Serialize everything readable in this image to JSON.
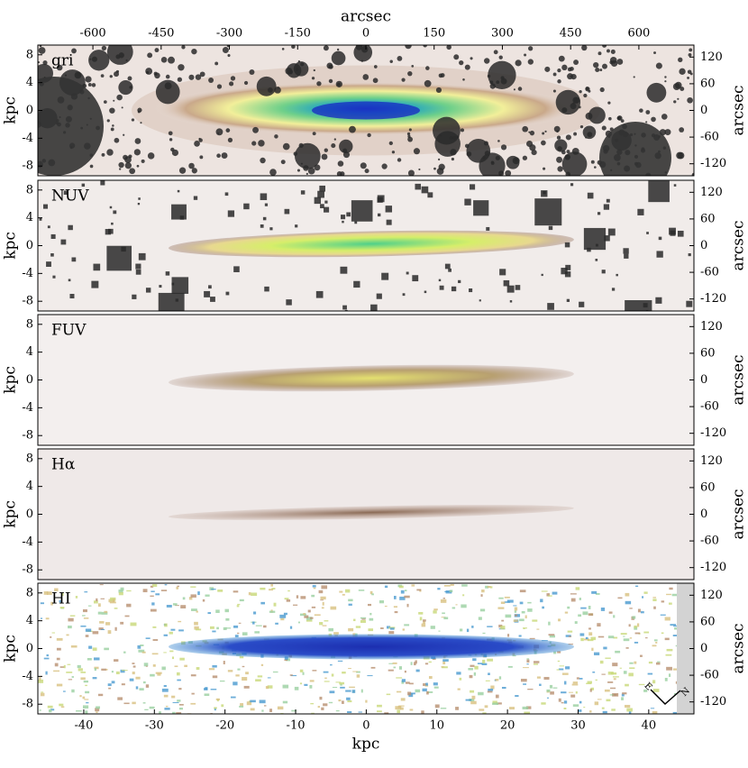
{
  "chart_data": [
    {
      "type": "image",
      "label": "gri",
      "ylabel": "kpc",
      "ylim": [
        -9.4,
        9.4
      ],
      "yticks": [
        -8,
        -4,
        0,
        4,
        8
      ],
      "y2label": "arcsec",
      "y2lim": [
        -147,
        147
      ],
      "y2ticks": [
        -120,
        -60,
        0,
        60,
        120
      ],
      "x2label": "arcsec",
      "x2lim": [
        -721,
        721
      ],
      "x2ticks": [
        -600,
        -450,
        -300,
        -150,
        0,
        150,
        300,
        450,
        600
      ]
    },
    {
      "type": "image",
      "label": "NUV",
      "ylabel": "kpc",
      "ylim": [
        -9.4,
        9.4
      ],
      "yticks": [
        -8,
        -4,
        0,
        4,
        8
      ],
      "y2label": "arcsec",
      "y2lim": [
        -147,
        147
      ],
      "y2ticks": [
        -120,
        -60,
        0,
        60,
        120
      ]
    },
    {
      "type": "image",
      "label": "FUV",
      "ylabel": "kpc",
      "ylim": [
        -9.4,
        9.4
      ],
      "yticks": [
        -8,
        -4,
        0,
        4,
        8
      ],
      "y2label": "arcsec",
      "y2lim": [
        -147,
        147
      ],
      "y2ticks": [
        -120,
        -60,
        0,
        60,
        120
      ]
    },
    {
      "type": "image",
      "label": "Hα",
      "ylabel": "kpc",
      "ylim": [
        -9.4,
        9.4
      ],
      "yticks": [
        -8,
        -4,
        0,
        4,
        8
      ],
      "y2label": "arcsec",
      "y2lim": [
        -147,
        147
      ],
      "y2ticks": [
        -120,
        -60,
        0,
        60,
        120
      ]
    },
    {
      "type": "image",
      "label": "HI",
      "ylabel": "kpc",
      "ylim": [
        -9.4,
        9.4
      ],
      "yticks": [
        -8,
        -4,
        0,
        4,
        8
      ],
      "y2label": "arcsec",
      "y2lim": [
        -147,
        147
      ],
      "y2ticks": [
        -120,
        -60,
        0,
        60,
        120
      ],
      "xlabel": "kpc",
      "xlim": [
        -46.5,
        46.4
      ],
      "xticks": [
        -40,
        -30,
        -20,
        -10,
        0,
        10,
        20,
        30,
        40
      ],
      "annotations": [
        "E",
        "N"
      ]
    }
  ]
}
